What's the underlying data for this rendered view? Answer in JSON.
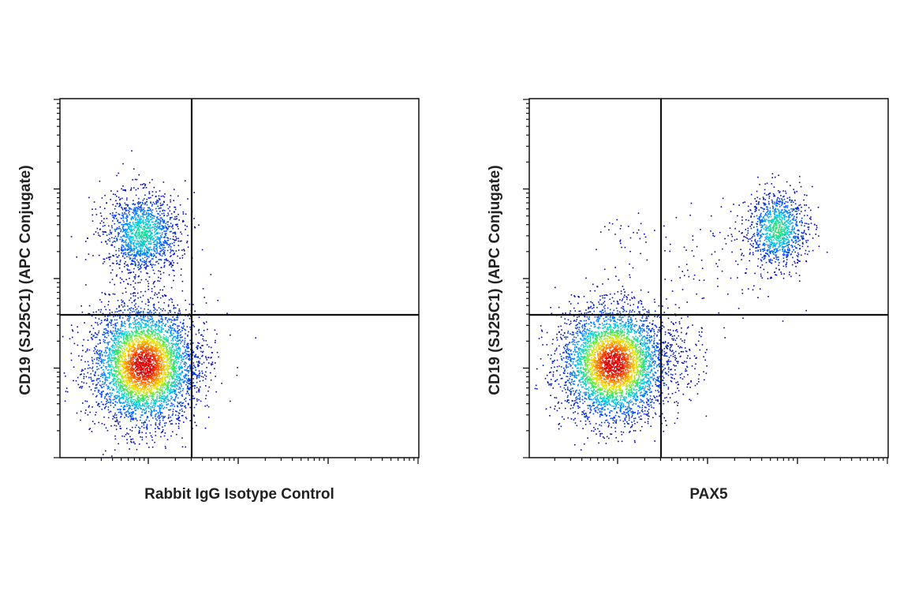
{
  "panels": [
    {
      "y_label": "CD19 (SJ25C1) (APC Conjugate)",
      "x_label": "Rabbit IgG Isotype Control"
    },
    {
      "y_label": "CD19 (SJ25C1) (APC Conjugate)",
      "x_label": "PAX5"
    }
  ]
}
